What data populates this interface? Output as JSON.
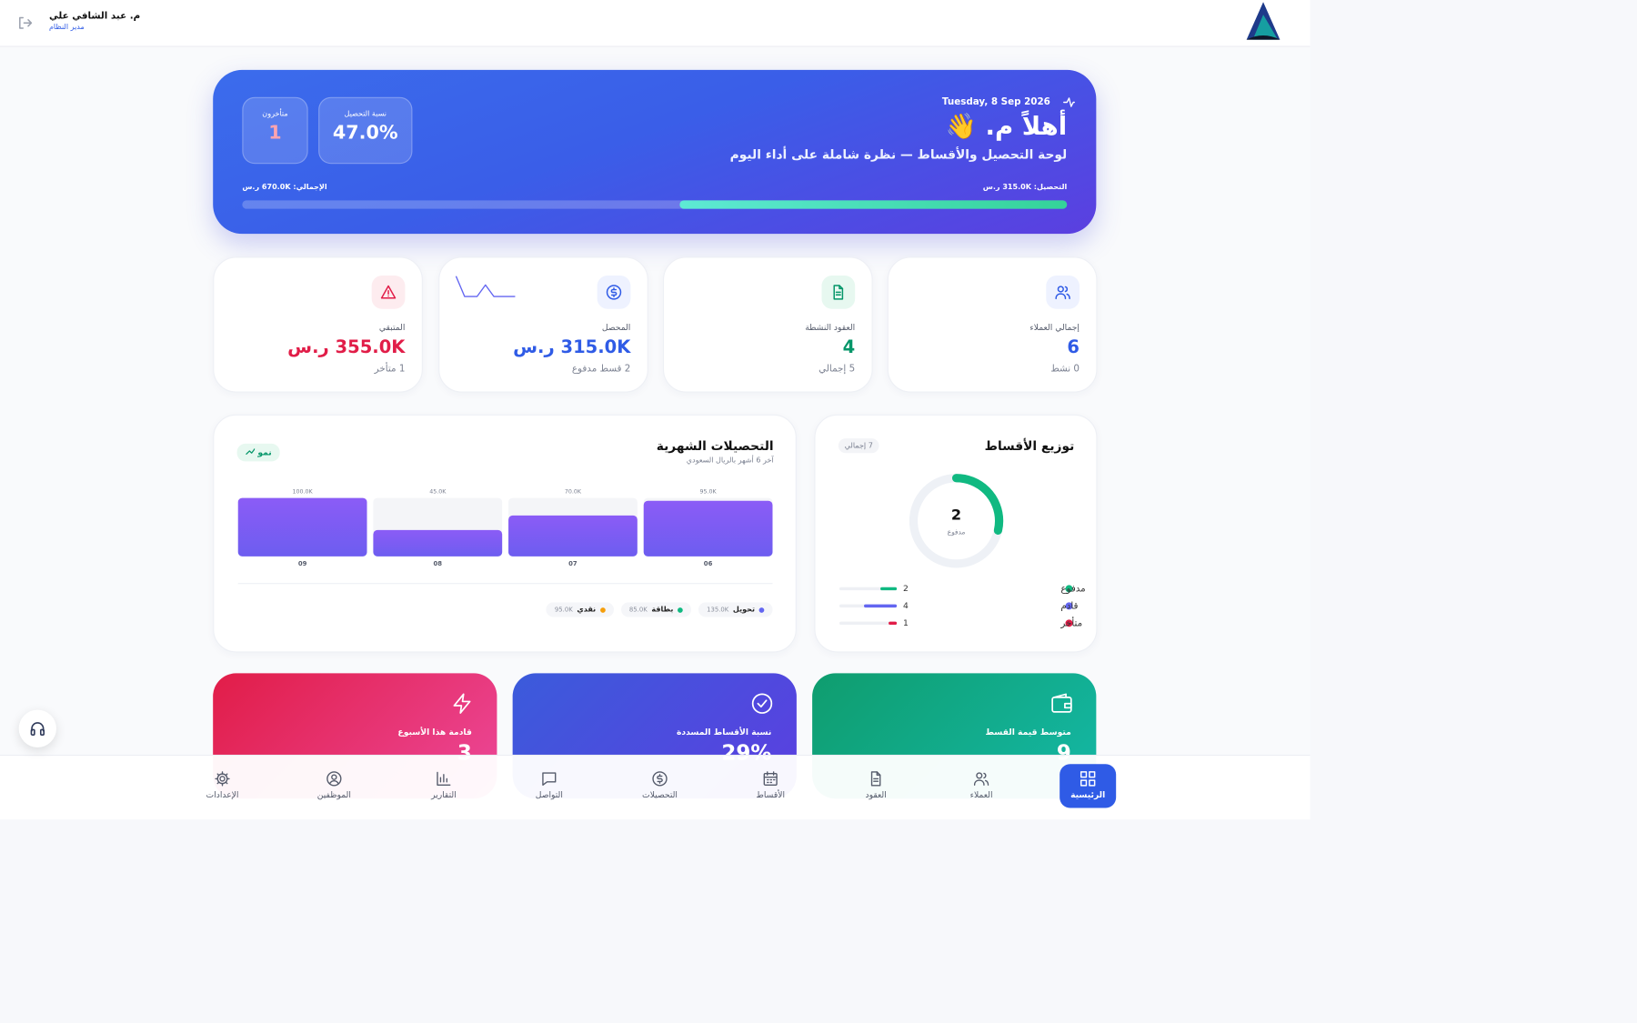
{
  "header": {
    "user_name": "م. عبد الشافي علي",
    "user_role": "مدير النظام"
  },
  "hero": {
    "date": "Tuesday, 8 Sep 2026",
    "greeting": "أهلاً م. 👋",
    "subtitle": "لوحة التحصيل والأقساط — نظرة شاملة على أداء اليوم",
    "stats": [
      {
        "label": "نسبة التحصيل",
        "value": "47.0%"
      },
      {
        "label": "متأخرون",
        "value": "1"
      }
    ],
    "progress": {
      "collected_label": "التحصيل:",
      "collected": 315000,
      "collected_text": "315.0K ر.س",
      "total_label": "الإجمالي:",
      "total": 670000,
      "total_text": "670.0K ر.س"
    }
  },
  "kpis": [
    {
      "label": "إجمالي العملاء",
      "value": "6",
      "sub": "0 نشط",
      "color": "#2f5be6"
    },
    {
      "label": "العقود النشطة",
      "value": "4",
      "sub": "5 إجمالي",
      "color": "#059669"
    },
    {
      "label": "المحصل",
      "value": "315.0K ر.س",
      "sub": "2 قسط مدفوع",
      "color": "#2f5be6"
    },
    {
      "label": "المتبقي",
      "value": "355.0K ر.س",
      "sub": "1 متأخر",
      "color": "#e11d48"
    }
  ],
  "donut": {
    "title": "توزيع الأقساط",
    "badge": "7 إجمالي",
    "center_label": "مدفوع",
    "items": [
      {
        "label": "مدفوع",
        "value": 2,
        "color": "#10b981"
      },
      {
        "label": "قادم",
        "value": 4,
        "color": "#6366f1"
      },
      {
        "label": "متأخر",
        "value": 1,
        "color": "#e11d48"
      }
    ]
  },
  "monthly": {
    "title": "التحصيلات الشهرية",
    "subtitle": "آخر 6 أشهر بالريال السعودي",
    "badge": "نمو",
    "categories": [
      "09",
      "08",
      "07",
      "06"
    ],
    "values": [
      100000,
      45000,
      70000,
      95000
    ],
    "value_labels": [
      "100.0K",
      "45.0K",
      "70.0K",
      "95.0K"
    ],
    "legend": [
      {
        "label": "تحويل",
        "value": "135.0K",
        "color": "#6366f1"
      },
      {
        "label": "بطاقة",
        "value": "85.0K",
        "color": "#10b981"
      },
      {
        "label": "نقدي",
        "value": "95.0K",
        "color": "#f59e0b"
      }
    ]
  },
  "bottom_cards": [
    {
      "label": "متوسط قيمة القسط",
      "value": "9"
    },
    {
      "label": "نسبة الأقساط المسددة",
      "value": "29%"
    },
    {
      "label": "قادمة هذا الأسبوع",
      "value": "3"
    }
  ],
  "nav": [
    "الرئيسية",
    "العملاء",
    "العقود",
    "الأقساط",
    "التحصيلات",
    "التواصل",
    "التقارير",
    "الموظفين",
    "الإعدادات"
  ]
}
